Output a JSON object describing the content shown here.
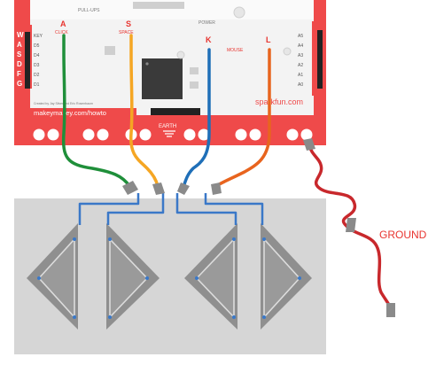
{
  "board": {
    "key_labels": [
      "A",
      "S",
      "K",
      "L"
    ],
    "key_legends": [
      "CLICK",
      "SPACE",
      "",
      "MOUSE"
    ],
    "left_pin_letters": [
      "W",
      "A",
      "S",
      "D",
      "F",
      "G"
    ],
    "left_pin_labels": [
      "KEY",
      "D5",
      "D4",
      "D3",
      "D2",
      "D1"
    ],
    "right_pin_labels": [
      "A5",
      "A4",
      "A3",
      "A2",
      "A1",
      "A0"
    ],
    "url": "makeymakey.com/howto",
    "credit": "Created by Jay Silver and Eric Rosenbaum",
    "earth": "EARTH",
    "power": "POWER",
    "brand": "sparkfun.com",
    "top_note": "PULL-UPS"
  },
  "ground_label": "GROUND",
  "colors": {
    "board_red": "#ef4a4a",
    "wire_green": "#1f8f3a",
    "wire_orange": "#f5a623",
    "wire_blue": "#1f6fb8",
    "wire_orange_red": "#e8641e",
    "wire_red": "#c8282c",
    "foil_blue": "#3a78c8",
    "panel_gray": "#d6d6d6",
    "triangle_gray": "#8f8f8f"
  }
}
